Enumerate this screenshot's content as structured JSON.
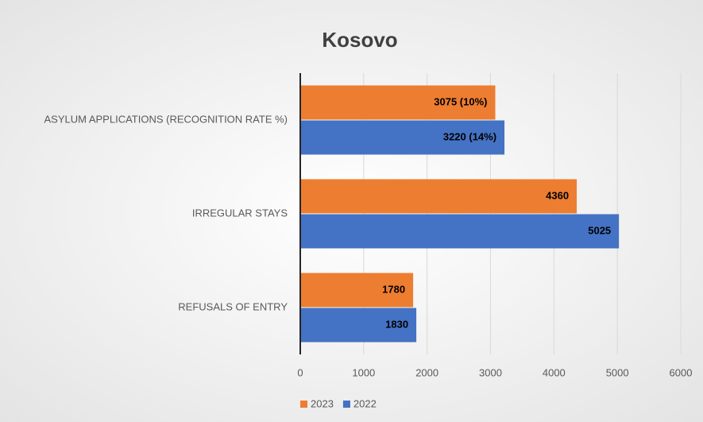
{
  "chart_data": {
    "type": "hbar",
    "title": "Kosovo",
    "categories": [
      "ASYLUM APPLICATIONS (RECOGNITION RATE %)",
      "IRREGULAR STAYS",
      "REFUSALS OF ENTRY"
    ],
    "series": [
      {
        "name": "2023",
        "color": "#ed7d31",
        "values": [
          3075,
          4360,
          1780
        ],
        "value_labels": [
          "3075 (10%)",
          "4360",
          "1780"
        ]
      },
      {
        "name": "2022",
        "color": "#4472c4",
        "values": [
          3220,
          5025,
          1830
        ],
        "value_labels": [
          "3220 (14%)",
          "5025",
          "1830"
        ]
      }
    ],
    "xlim": [
      0,
      6000
    ],
    "xticks": [
      0,
      1000,
      2000,
      3000,
      4000,
      5000,
      6000
    ],
    "grid": true,
    "legend": "bottom"
  }
}
